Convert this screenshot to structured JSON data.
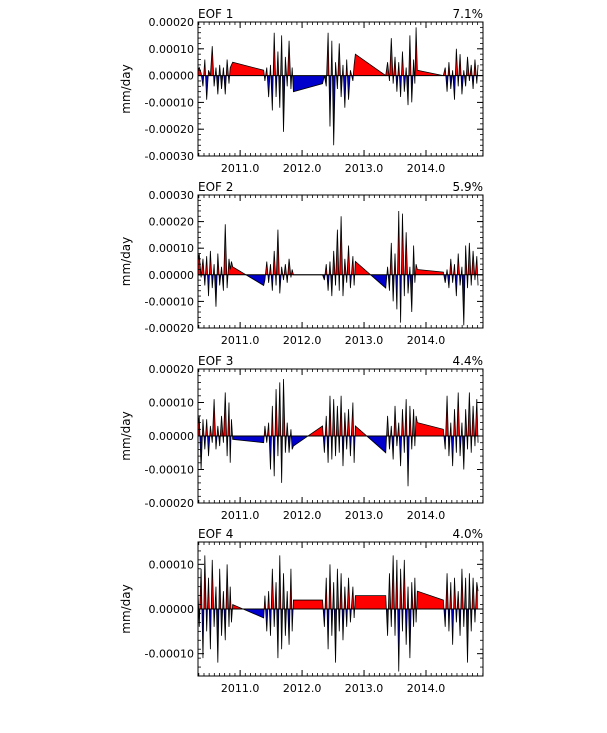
{
  "chart_data": [
    {
      "type": "area",
      "title": "EOF 1",
      "variance_label": "7.1%",
      "ylabel": "mm/day",
      "xlabel": "",
      "xlim": [
        2010.32,
        2014.92
      ],
      "ylim": [
        -0.0003,
        0.0002
      ],
      "yticks": [
        0.0002,
        0.0001,
        0.0,
        -0.0001,
        -0.0002,
        -0.0003
      ],
      "ytick_labels": [
        "0.00020",
        "0.00010",
        "0.00000",
        "-0.00010",
        "-0.00020",
        "-0.00030"
      ],
      "xticks": [
        2011.0,
        2012.0,
        2013.0,
        2014.0
      ],
      "xtick_labels": [
        "2011.0",
        "2012.0",
        "2013.0",
        "2014.0"
      ],
      "positive_color": "#ff0000",
      "negative_color": "#0000cc",
      "x": [
        2010.32,
        2010.34,
        2010.37,
        2010.4,
        2010.43,
        2010.46,
        2010.49,
        2010.52,
        2010.55,
        2010.58,
        2010.61,
        2010.64,
        2010.67,
        2010.7,
        2010.73,
        2010.76,
        2010.79,
        2010.82,
        2010.84,
        2010.86,
        2010.88,
        2011.38,
        2011.4,
        2011.43,
        2011.46,
        2011.49,
        2011.52,
        2011.55,
        2011.58,
        2011.61,
        2011.64,
        2011.67,
        2011.7,
        2011.73,
        2011.76,
        2011.79,
        2011.82,
        2011.84,
        2011.86,
        2012.33,
        2012.36,
        2012.39,
        2012.42,
        2012.45,
        2012.48,
        2012.51,
        2012.54,
        2012.57,
        2012.6,
        2012.63,
        2012.66,
        2012.69,
        2012.72,
        2012.75,
        2012.78,
        2012.82,
        2012.84,
        2012.86,
        2013.35,
        2013.38,
        2013.41,
        2013.44,
        2013.47,
        2013.5,
        2013.53,
        2013.56,
        2013.59,
        2013.62,
        2013.65,
        2013.68,
        2013.71,
        2013.74,
        2013.77,
        2013.8,
        2013.82,
        2013.84,
        2013.86,
        2014.28,
        2014.31,
        2014.34,
        2014.37,
        2014.4,
        2014.43,
        2014.46,
        2014.49,
        2014.52,
        2014.55,
        2014.58,
        2014.61,
        2014.64,
        2014.67,
        2014.7,
        2014.73,
        2014.76,
        2014.79,
        2014.82,
        2014.84
      ],
      "y": [
        2e-05,
        3e-05,
        1e-05,
        -4e-05,
        6e-05,
        -9e-05,
        2e-05,
        0.0,
        0.00011,
        -4e-05,
        3e-05,
        -7e-05,
        4e-05,
        -5e-05,
        3e-05,
        -7e-05,
        6e-05,
        -3e-05,
        3e-05,
        4e-05,
        5e-05,
        2e-05,
        -2e-05,
        3e-05,
        -8e-05,
        4e-05,
        -0.00013,
        0.00016,
        -8e-05,
        9e-05,
        -0.00012,
        0.00015,
        -0.00021,
        7e-05,
        -4e-05,
        0.00013,
        -5e-05,
        3e-05,
        -6e-05,
        -3e-05,
        0.0,
        -4e-05,
        0.00016,
        -0.00019,
        0.00013,
        -0.00026,
        5e-05,
        -5e-05,
        0.00012,
        -8e-05,
        4e-05,
        -0.00012,
        6e-05,
        -9e-05,
        2e-05,
        -2e-05,
        4e-05,
        8e-05,
        0.0,
        5e-05,
        -2e-05,
        0.00014,
        -3e-05,
        7e-05,
        -6e-05,
        5e-05,
        -8e-05,
        9e-05,
        -6e-05,
        3e-05,
        -0.00011,
        0.00015,
        -0.0001,
        6e-05,
        -3e-05,
        0.00018,
        2e-05,
        0.0,
        3e-05,
        -6e-05,
        5e-05,
        -5e-05,
        2e-05,
        -9e-05,
        0.0001,
        -4e-05,
        8e-05,
        -7e-05,
        2e-05,
        -4e-05,
        7e-05,
        -2e-05,
        4e-05,
        -5e-05,
        6e-05,
        -3e-05,
        4e-05
      ]
    },
    {
      "type": "area",
      "title": "EOF 2",
      "variance_label": "5.9%",
      "ylabel": "mm/day",
      "xlabel": "",
      "xlim": [
        2010.32,
        2014.92
      ],
      "ylim": [
        -0.0002,
        0.0003
      ],
      "yticks": [
        0.0003,
        0.0002,
        0.0001,
        0.0,
        -0.0001,
        -0.0002
      ],
      "ytick_labels": [
        "0.00030",
        "0.00020",
        "0.00010",
        "0.00000",
        "-0.00010",
        "-0.00020"
      ],
      "xticks": [
        2011.0,
        2012.0,
        2013.0,
        2014.0
      ],
      "xtick_labels": [
        "2011.0",
        "2012.0",
        "2013.0",
        "2014.0"
      ],
      "positive_color": "#ff0000",
      "negative_color": "#0000cc",
      "x": [
        2010.32,
        2010.34,
        2010.37,
        2010.4,
        2010.43,
        2010.46,
        2010.49,
        2010.52,
        2010.55,
        2010.58,
        2010.61,
        2010.64,
        2010.67,
        2010.7,
        2010.73,
        2010.76,
        2010.79,
        2010.82,
        2010.84,
        2010.86,
        2010.88,
        2011.38,
        2011.4,
        2011.43,
        2011.46,
        2011.49,
        2011.52,
        2011.55,
        2011.58,
        2011.61,
        2011.64,
        2011.67,
        2011.7,
        2011.73,
        2011.76,
        2011.79,
        2011.82,
        2011.84,
        2011.86,
        2012.33,
        2012.36,
        2012.39,
        2012.42,
        2012.45,
        2012.48,
        2012.51,
        2012.54,
        2012.57,
        2012.6,
        2012.63,
        2012.66,
        2012.69,
        2012.72,
        2012.75,
        2012.78,
        2012.82,
        2012.84,
        2012.86,
        2013.35,
        2013.38,
        2013.41,
        2013.44,
        2013.47,
        2013.5,
        2013.53,
        2013.56,
        2013.59,
        2013.62,
        2013.65,
        2013.68,
        2013.71,
        2013.74,
        2013.77,
        2013.8,
        2013.82,
        2013.84,
        2013.86,
        2014.28,
        2014.31,
        2014.34,
        2014.37,
        2014.4,
        2014.43,
        2014.46,
        2014.49,
        2014.52,
        2014.55,
        2014.58,
        2014.61,
        2014.64,
        2014.67,
        2014.7,
        2014.73,
        2014.76,
        2014.79,
        2014.82,
        2014.84
      ],
      "y": [
        5e-05,
        8e-05,
        -1e-05,
        6e-05,
        -4e-05,
        7e-05,
        -8e-05,
        9e-05,
        -5e-05,
        4e-05,
        -0.00012,
        8e-05,
        -4e-05,
        3e-05,
        -6e-05,
        0.00019,
        -5e-05,
        6e-05,
        2e-05,
        5e-05,
        3e-05,
        -4e-05,
        -2e-05,
        5e-05,
        -3e-05,
        4e-05,
        -6e-05,
        9e-05,
        -4e-05,
        0.00017,
        -7e-05,
        3e-05,
        -2e-05,
        4e-05,
        -3e-05,
        6e-05,
        -1e-05,
        2e-05,
        0.0,
        0.0,
        -2e-05,
        4e-05,
        -6e-05,
        5e-05,
        -8e-05,
        9e-05,
        -4e-05,
        0.00017,
        -6e-05,
        0.00022,
        -8e-05,
        6e-05,
        -3e-05,
        0.00011,
        -5e-05,
        7e-05,
        -4e-05,
        5e-05,
        -5e-05,
        3e-05,
        -6e-05,
        0.00012,
        -0.0001,
        8e-05,
        -0.00013,
        0.00024,
        -0.00018,
        0.00023,
        -8e-05,
        0.00016,
        -7e-05,
        3e-05,
        -0.00014,
        0.00011,
        -3e-05,
        4e-05,
        2e-05,
        1e-05,
        -3e-05,
        2e-05,
        -5e-05,
        6e-05,
        -3e-05,
        4e-05,
        -8e-05,
        8e-05,
        -4e-05,
        3e-05,
        -0.00019,
        0.00011,
        -5e-05,
        0.00012,
        -4e-05,
        9e-05,
        -2e-05,
        7e-05,
        -4e-05
      ]
    },
    {
      "type": "area",
      "title": "EOF 3",
      "variance_label": "4.4%",
      "ylabel": "mm/day",
      "xlabel": "",
      "xlim": [
        2010.32,
        2014.92
      ],
      "ylim": [
        -0.0002,
        0.0002
      ],
      "yticks": [
        0.0002,
        0.0001,
        0.0,
        -0.0001,
        -0.0002
      ],
      "ytick_labels": [
        "0.00020",
        "0.00010",
        "0.00000",
        "-0.00010",
        "-0.00020"
      ],
      "xticks": [
        2011.0,
        2012.0,
        2013.0,
        2014.0
      ],
      "xtick_labels": [
        "2011.0",
        "2012.0",
        "2013.0",
        "2014.0"
      ],
      "positive_color": "#ff0000",
      "negative_color": "#0000cc",
      "x": [
        2010.32,
        2010.34,
        2010.37,
        2010.4,
        2010.43,
        2010.46,
        2010.49,
        2010.52,
        2010.55,
        2010.58,
        2010.61,
        2010.64,
        2010.67,
        2010.7,
        2010.73,
        2010.76,
        2010.79,
        2010.82,
        2010.84,
        2010.86,
        2010.88,
        2011.38,
        2011.4,
        2011.43,
        2011.46,
        2011.49,
        2011.52,
        2011.55,
        2011.58,
        2011.61,
        2011.64,
        2011.67,
        2011.7,
        2011.73,
        2011.76,
        2011.79,
        2011.82,
        2011.84,
        2011.86,
        2012.33,
        2012.36,
        2012.39,
        2012.42,
        2012.45,
        2012.48,
        2012.51,
        2012.54,
        2012.57,
        2012.6,
        2012.63,
        2012.66,
        2012.69,
        2012.72,
        2012.75,
        2012.78,
        2012.82,
        2012.84,
        2012.86,
        2013.35,
        2013.38,
        2013.41,
        2013.44,
        2013.47,
        2013.5,
        2013.53,
        2013.56,
        2013.59,
        2013.62,
        2013.65,
        2013.68,
        2013.71,
        2013.74,
        2013.77,
        2013.8,
        2013.82,
        2013.84,
        2013.86,
        2014.28,
        2014.31,
        2014.34,
        2014.37,
        2014.4,
        2014.43,
        2014.46,
        2014.49,
        2014.52,
        2014.55,
        2014.58,
        2014.61,
        2014.64,
        2014.67,
        2014.7,
        2014.73,
        2014.76,
        2014.79,
        2014.82,
        2014.84
      ],
      "y": [
        3e-05,
        6e-05,
        -0.0001,
        5e-05,
        -4e-05,
        5e-05,
        -6e-05,
        3e-05,
        -2e-05,
        0.00011,
        -4e-05,
        3e-05,
        -3e-05,
        6e-05,
        -2e-05,
        0.00013,
        -6e-05,
        0.0001,
        -8e-05,
        5e-05,
        -1e-05,
        -2e-05,
        3e-05,
        -2e-05,
        4e-05,
        -0.0001,
        9e-05,
        -0.00012,
        0.00014,
        -6e-05,
        0.00016,
        -0.00014,
        0.00017,
        -5e-05,
        4e-05,
        -5e-05,
        2e-05,
        -4e-05,
        -3e-05,
        3e-05,
        -5e-05,
        6e-05,
        -8e-05,
        0.00012,
        -7e-05,
        0.00011,
        -6e-05,
        9e-05,
        -5e-05,
        0.00012,
        -9e-05,
        7e-05,
        -4e-05,
        8e-05,
        -6e-05,
        0.0001,
        -8e-05,
        3e-05,
        -5e-05,
        6e-05,
        -4e-05,
        3e-05,
        -7e-05,
        9e-05,
        -3e-05,
        4e-05,
        -9e-05,
        8e-05,
        -5e-05,
        0.00011,
        -0.00015,
        9e-05,
        -4e-05,
        8e-05,
        -3e-05,
        6e-05,
        4e-05,
        2e-05,
        -4e-05,
        0.00012,
        -6e-05,
        4e-05,
        -9e-05,
        8e-05,
        -5e-05,
        0.00013,
        -6e-05,
        4e-05,
        -0.0001,
        8e-05,
        -4e-05,
        0.00013,
        -5e-05,
        9e-05,
        -3e-05,
        0.00011,
        -2e-05
      ]
    },
    {
      "type": "area",
      "title": "EOF 4",
      "variance_label": "4.0%",
      "ylabel": "mm/day",
      "xlabel": "",
      "xlim": [
        2010.32,
        2014.92
      ],
      "ylim": [
        -0.00015,
        0.00015
      ],
      "yticks": [
        0.0001,
        0.0,
        -0.0001
      ],
      "ytick_labels": [
        "0.00010",
        "0.00000",
        "-0.00010"
      ],
      "xticks": [
        2011.0,
        2012.0,
        2013.0,
        2014.0
      ],
      "xtick_labels": [
        "2011.0",
        "2012.0",
        "2013.0",
        "2014.0"
      ],
      "positive_color": "#ff0000",
      "negative_color": "#0000cc",
      "x": [
        2010.32,
        2010.34,
        2010.37,
        2010.4,
        2010.43,
        2010.46,
        2010.49,
        2010.52,
        2010.55,
        2010.58,
        2010.61,
        2010.64,
        2010.67,
        2010.7,
        2010.73,
        2010.76,
        2010.79,
        2010.82,
        2010.84,
        2010.86,
        2010.88,
        2011.38,
        2011.4,
        2011.43,
        2011.46,
        2011.49,
        2011.52,
        2011.55,
        2011.58,
        2011.61,
        2011.64,
        2011.67,
        2011.7,
        2011.73,
        2011.76,
        2011.79,
        2011.82,
        2011.84,
        2011.86,
        2012.33,
        2012.36,
        2012.39,
        2012.42,
        2012.45,
        2012.48,
        2012.51,
        2012.54,
        2012.57,
        2012.6,
        2012.63,
        2012.66,
        2012.69,
        2012.72,
        2012.75,
        2012.78,
        2012.82,
        2012.84,
        2012.86,
        2013.35,
        2013.38,
        2013.41,
        2013.44,
        2013.47,
        2013.5,
        2013.53,
        2013.56,
        2013.59,
        2013.62,
        2013.65,
        2013.68,
        2013.71,
        2013.74,
        2013.77,
        2013.8,
        2013.82,
        2013.84,
        2013.86,
        2014.28,
        2014.31,
        2014.34,
        2014.37,
        2014.4,
        2014.43,
        2014.46,
        2014.49,
        2014.52,
        2014.55,
        2014.58,
        2014.61,
        2014.64,
        2014.67,
        2014.7,
        2014.73,
        2014.76,
        2014.79,
        2014.82,
        2014.84
      ],
      "y": [
        4e-05,
        -4e-05,
        9e-05,
        -0.00011,
        0.00012,
        -5e-05,
        7e-05,
        -9e-05,
        0.00011,
        -4e-05,
        5e-05,
        -0.00012,
        9e-05,
        -6e-05,
        4e-05,
        -7e-05,
        0.0001,
        -4e-05,
        5e-05,
        -3e-05,
        1e-05,
        -2e-05,
        3e-05,
        -5e-05,
        4e-05,
        -6e-05,
        9e-05,
        -4e-05,
        6e-05,
        -0.00011,
        0.00012,
        -9e-05,
        8e-05,
        -6e-05,
        4e-05,
        -8e-05,
        9e-05,
        -5e-05,
        2e-05,
        2e-05,
        -4e-05,
        7e-05,
        -9e-05,
        0.0001,
        -6e-05,
        6e-05,
        -0.00012,
        9e-05,
        -5e-05,
        8e-05,
        -7e-05,
        5e-05,
        -4e-05,
        7e-05,
        -3e-05,
        5e-05,
        -2e-05,
        3e-05,
        3e-05,
        -6e-05,
        8e-05,
        -4e-05,
        0.00012,
        -6e-05,
        0.00011,
        -0.00014,
        9e-05,
        -5e-05,
        0.00011,
        -8e-05,
        5e-05,
        -0.00011,
        6e-05,
        -4e-05,
        7e-05,
        -3e-05,
        4e-05,
        2e-05,
        -4e-05,
        8e-05,
        -5e-05,
        6e-05,
        -8e-05,
        7e-05,
        -3e-05,
        4e-05,
        -6e-05,
        9e-05,
        -4e-05,
        7e-05,
        -0.00012,
        8e-05,
        -5e-05,
        7e-05,
        -3e-05,
        6e-05,
        4e-05
      ]
    }
  ]
}
